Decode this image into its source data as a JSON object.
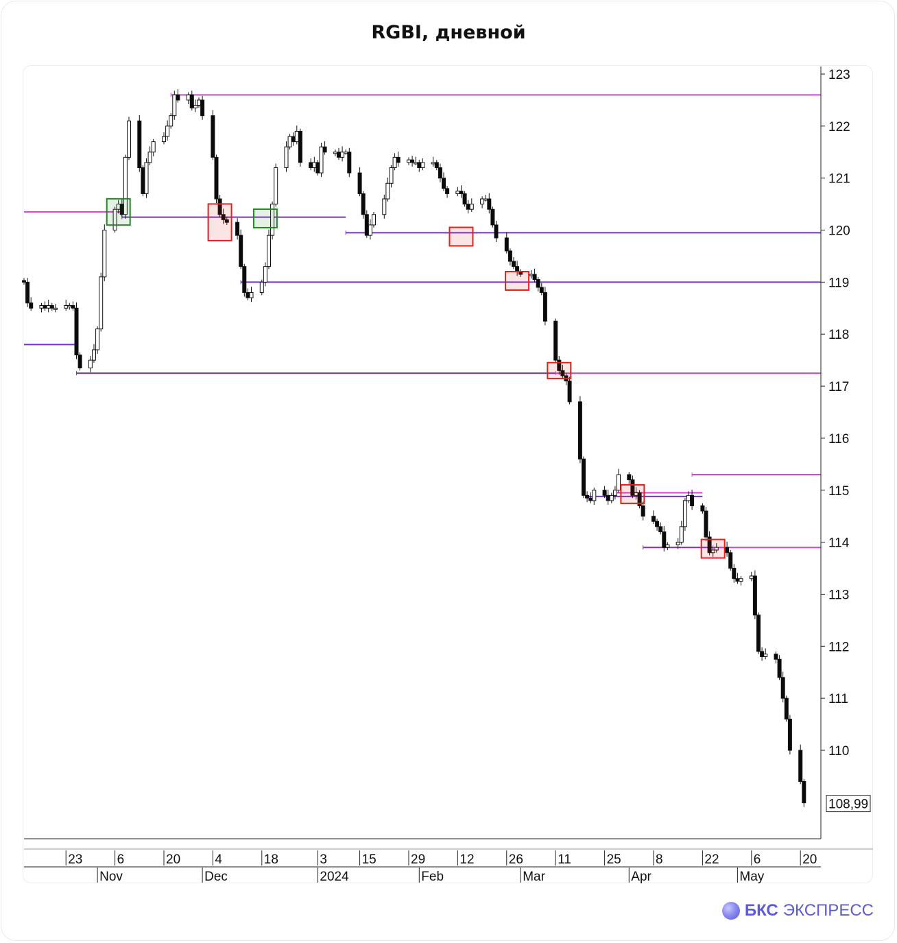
{
  "title": "RGBI, дневной",
  "brand": {
    "name_bold": "БКС",
    "name_rest": "ЭКСПРЕСС",
    "icon": "bks-sphere-logo-icon"
  },
  "last_price_label": "108,99",
  "chart_data": {
    "type": "candlestick",
    "title": "RGBI, дневной",
    "timeframe": "daily",
    "ylim": [
      108.4,
      123.2
    ],
    "y_ticks": [
      "123",
      "122",
      "121",
      "120",
      "119",
      "118",
      "117",
      "116",
      "115",
      "114",
      "113",
      "112",
      "111",
      "110"
    ],
    "x_day_ticks": [
      {
        "label": "23",
        "date": "2023-10-23"
      },
      {
        "label": "6",
        "date": "2023-11-06"
      },
      {
        "label": "20",
        "date": "2023-11-20"
      },
      {
        "label": "4",
        "date": "2023-12-04"
      },
      {
        "label": "18",
        "date": "2023-12-18"
      },
      {
        "label": "3",
        "date": "2024-01-03"
      },
      {
        "label": "15",
        "date": "2024-01-15"
      },
      {
        "label": "29",
        "date": "2024-01-29"
      },
      {
        "label": "12",
        "date": "2024-02-12"
      },
      {
        "label": "26",
        "date": "2024-02-26"
      },
      {
        "label": "11",
        "date": "2024-03-11"
      },
      {
        "label": "25",
        "date": "2024-03-25"
      },
      {
        "label": "8",
        "date": "2024-04-08"
      },
      {
        "label": "22",
        "date": "2024-04-22"
      },
      {
        "label": "6",
        "date": "2024-05-06"
      },
      {
        "label": "20",
        "date": "2024-05-20"
      }
    ],
    "x_month_ticks": [
      {
        "label": "Nov",
        "date": "2023-11-01"
      },
      {
        "label": "Dec",
        "date": "2023-12-01"
      },
      {
        "label": "2024",
        "date": "2024-01-03"
      },
      {
        "label": "Feb",
        "date": "2024-02-01"
      },
      {
        "label": "Mar",
        "date": "2024-03-01"
      },
      {
        "label": "Apr",
        "date": "2024-04-01"
      },
      {
        "label": "May",
        "date": "2024-05-02"
      }
    ],
    "closes": [
      119.0,
      118.6,
      118.5,
      118.55,
      118.5,
      118.55,
      118.5,
      118.5,
      118.55,
      118.55,
      118.5,
      117.6,
      117.35,
      117.5,
      117.7,
      118.1,
      119.1,
      120.0,
      120.4,
      120.5,
      120.3,
      121.4,
      122.1,
      121.2,
      120.7,
      121.3,
      121.5,
      121.7,
      121.8,
      122.0,
      122.2,
      122.6,
      122.5,
      122.6,
      122.35,
      122.4,
      122.5,
      122.2,
      121.4,
      120.6,
      120.3,
      120.2,
      120.15,
      119.9,
      119.3,
      118.8,
      118.7,
      118.8,
      119.0,
      119.3,
      119.9,
      120.5,
      121.2,
      121.6,
      121.8,
      121.7,
      121.9,
      121.3,
      121.2,
      121.3,
      121.1,
      121.6,
      121.5,
      121.5,
      121.4,
      121.5,
      121.5,
      121.1,
      120.7,
      120.3,
      119.9,
      120.1,
      120.3,
      120.6,
      120.9,
      121.2,
      121.4,
      121.3,
      121.35,
      121.3,
      121.3,
      121.2,
      121.3,
      121.3,
      121.2,
      121.0,
      120.8,
      120.7,
      120.75,
      120.7,
      120.5,
      120.4,
      120.5,
      120.6,
      120.6,
      120.4,
      120.1,
      119.85,
      119.6,
      119.4,
      119.3,
      119.2,
      119.15,
      119.15,
      119.05,
      118.9,
      118.8,
      118.25,
      117.5,
      117.3,
      117.2,
      117.1,
      116.7,
      115.6,
      114.9,
      114.85,
      114.8,
      115.0,
      114.9,
      114.8,
      114.9,
      115.0,
      115.3,
      115.2,
      114.9,
      114.95,
      114.7,
      114.5,
      114.4,
      114.3,
      114.2,
      113.9,
      113.95,
      114.0,
      114.3,
      114.8,
      114.9,
      114.7,
      114.6,
      114.1,
      113.8,
      113.85,
      113.9,
      113.8,
      113.5,
      113.3,
      113.25,
      113.3,
      113.35,
      112.6,
      111.9,
      111.8,
      111.85,
      111.75,
      111.4,
      111.0,
      110.6,
      110.0,
      109.4,
      108.99
    ],
    "highlight_boxes": [
      {
        "kind": "bullish",
        "color": "#1f8a1f",
        "x_date": "2023-11-07",
        "y_from": 120.15,
        "y_to": 120.55
      },
      {
        "kind": "bearish",
        "color": "#e22020",
        "x_date": "2023-12-06",
        "y_from": 119.85,
        "y_to": 120.45
      },
      {
        "kind": "bullish",
        "color": "#1f8a1f",
        "x_date": "2023-12-19",
        "y_from": 120.1,
        "y_to": 120.35
      },
      {
        "kind": "bearish",
        "color": "#e22020",
        "x_date": "2024-02-13",
        "y_from": 119.75,
        "y_to": 120.0
      },
      {
        "kind": "bearish",
        "color": "#e22020",
        "x_date": "2024-02-29",
        "y_from": 118.9,
        "y_to": 119.15
      },
      {
        "kind": "bearish",
        "color": "#e22020",
        "x_date": "2024-03-12",
        "y_from": 117.2,
        "y_to": 117.4
      },
      {
        "kind": "bearish",
        "color": "#e22020",
        "x_date": "2024-04-02",
        "y_from": 114.8,
        "y_to": 115.05
      },
      {
        "kind": "bearish",
        "color": "#e22020",
        "x_date": "2024-04-25",
        "y_from": 113.75,
        "y_to": 114.0
      }
    ],
    "levels": [
      {
        "color": "#e23ce2",
        "y": 122.6,
        "from": "2023-11-22",
        "to": "end"
      },
      {
        "color": "#e23ce2",
        "y": 120.35,
        "from": "start",
        "to": "2023-11-08"
      },
      {
        "color": "#7b2ed6",
        "y": 120.25,
        "from": "2023-11-08",
        "to": "2024-01-11"
      },
      {
        "color": "#7b2ed6",
        "y": 119.95,
        "from": "2024-01-11",
        "to": "end"
      },
      {
        "color": "#7b2ed6",
        "y": 119.0,
        "from": "2023-12-12",
        "to": "end"
      },
      {
        "color": "#7b2ed6",
        "y": 117.8,
        "from": "start",
        "to": "2023-10-26"
      },
      {
        "color": "#7b2ed6",
        "y": 117.25,
        "from": "2023-10-26",
        "to": "2024-03-11"
      },
      {
        "color": "#e23ce2",
        "y": 117.25,
        "from": "2024-03-11",
        "to": "end"
      },
      {
        "color": "#e23ce2",
        "y": 115.3,
        "from": "2024-04-19",
        "to": "end"
      },
      {
        "color": "#e23ce2",
        "y": 114.95,
        "from": "2024-03-28",
        "to": "2024-04-22"
      },
      {
        "color": "#7b2ed6",
        "y": 114.88,
        "from": "2024-03-20",
        "to": "2024-04-22"
      },
      {
        "color": "#7b2ed6",
        "y": 113.9,
        "from": "2024-04-05",
        "to": "2024-04-25"
      },
      {
        "color": "#e23ce2",
        "y": 113.9,
        "from": "2024-04-25",
        "to": "end"
      }
    ],
    "grid": false,
    "y_axis_side": "right"
  }
}
